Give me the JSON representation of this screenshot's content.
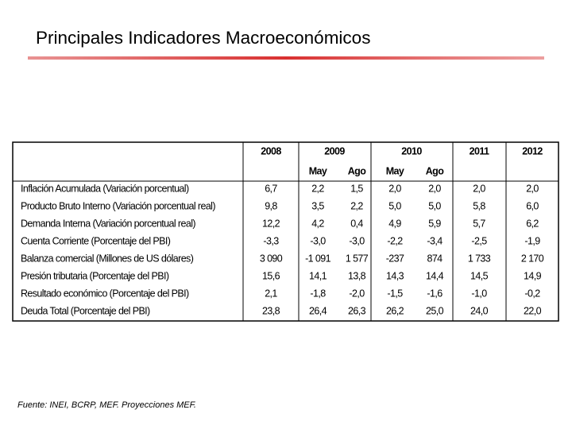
{
  "header": {
    "title": "Principales Indicadores Macroeconómicos"
  },
  "table": {
    "years": [
      "2008",
      "2009",
      "2010",
      "2011",
      "2012"
    ],
    "subheaders": [
      "May",
      "Ago",
      "May",
      "Ago"
    ],
    "rows": [
      {
        "label": "Inflación Acumulada (Variación porcentual)",
        "values": [
          "6,7",
          "2,2",
          "1,5",
          "2,0",
          "2,0",
          "2,0",
          "2,0"
        ]
      },
      {
        "label": "Producto Bruto Interno (Variación porcentual real)",
        "values": [
          "9,8",
          "3,5",
          "2,2",
          "5,0",
          "5,0",
          "5,8",
          "6,0"
        ]
      },
      {
        "label": "Demanda Interna (Variación porcentual real)",
        "values": [
          "12,2",
          "4,2",
          "0,4",
          "4,9",
          "5,9",
          "5,7",
          "6,2"
        ]
      },
      {
        "label": "Cuenta Corriente (Porcentaje del PBI)",
        "values": [
          "-3,3",
          "-3,0",
          "-3,0",
          "-2,2",
          "-3,4",
          "-2,5",
          "-1,9"
        ]
      },
      {
        "label": "Balanza comercial (Millones de US dólares)",
        "values": [
          "3 090",
          "-1 091",
          "1 577",
          "-237",
          "874",
          "1 733",
          "2 170"
        ]
      },
      {
        "label": "Presión tributaria (Porcentaje del PBI)",
        "values": [
          "15,6",
          "14,1",
          "13,8",
          "14,3",
          "14,4",
          "14,5",
          "14,9"
        ]
      },
      {
        "label": "Resultado económico (Porcentaje del PBI)",
        "values": [
          "2,1",
          "-1,8",
          "-2,0",
          "-1,5",
          "-1,6",
          "-1,0",
          "-0,2"
        ]
      },
      {
        "label": "Deuda Total (Porcentaje del PBI)",
        "values": [
          "23,8",
          "26,4",
          "26,3",
          "26,2",
          "25,0",
          "24,0",
          "22,0"
        ]
      }
    ]
  },
  "footnote": "Fuente:  INEI, BCRP, MEF. Proyecciones MEF."
}
